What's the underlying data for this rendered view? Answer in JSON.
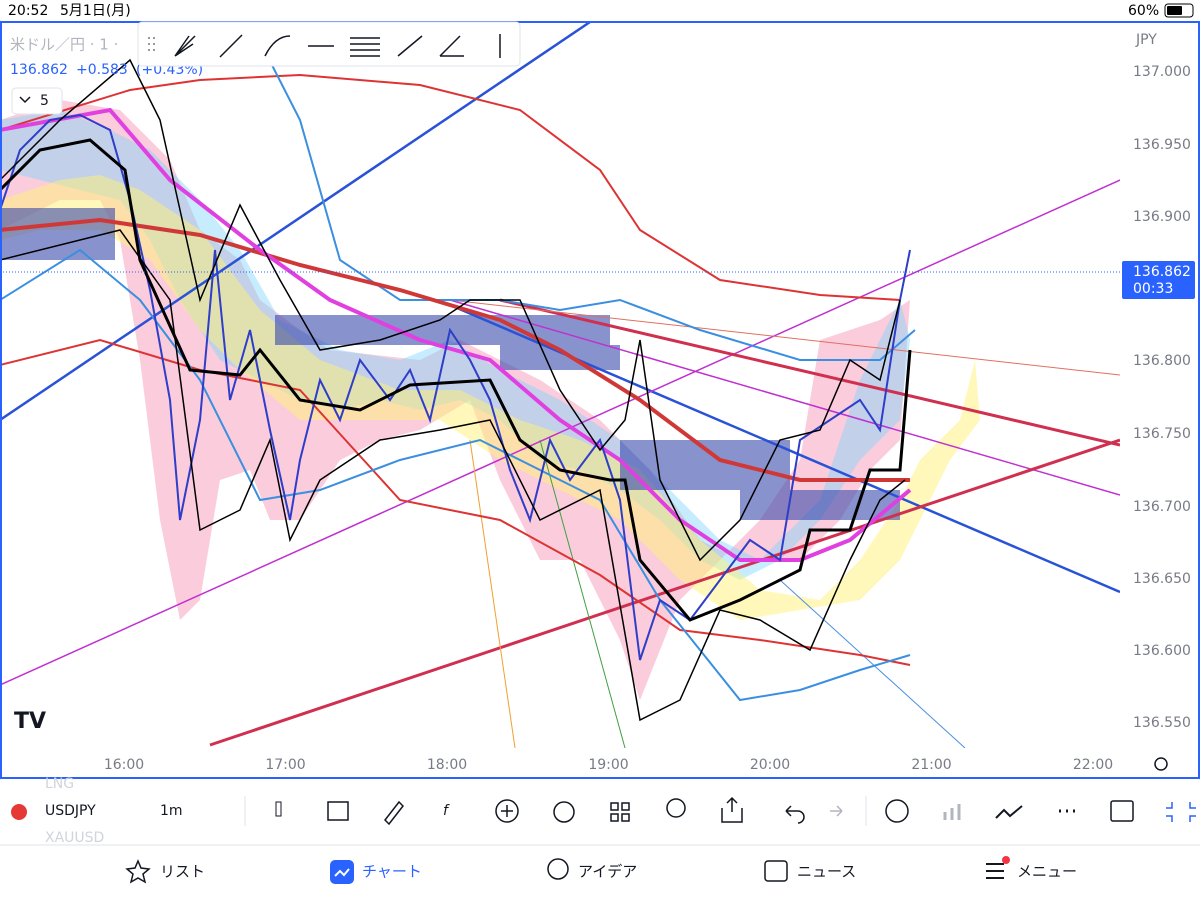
{
  "status_bar": {
    "time": "20:52",
    "date": "5月1日(月)",
    "battery": "60%"
  },
  "chart": {
    "symbol_title": "米ドル／円 · 1 ·",
    "price": "136.862",
    "change": "+0.583",
    "change_pct": "(+0.43%)",
    "indicator_count": "5",
    "currency": "JPY",
    "price_ticks": [
      "137.000",
      "136.950",
      "136.900",
      "136.800",
      "136.750",
      "136.700",
      "136.650",
      "136.600",
      "136.550"
    ],
    "last_price": "136.862",
    "countdown": "00:33",
    "time_ticks": [
      "16:00",
      "17:00",
      "18:00",
      "19:00",
      "20:00",
      "21:00",
      "22:00"
    ]
  },
  "toolbar": {
    "prev_symbol": "LNG",
    "symbol": "USDJPY",
    "interval": "1m",
    "next_symbol": "XAUUSD"
  },
  "tab_bar": {
    "tabs": [
      "リスト",
      "チャート",
      "アイデア",
      "ニュース",
      "メニュー"
    ]
  }
}
